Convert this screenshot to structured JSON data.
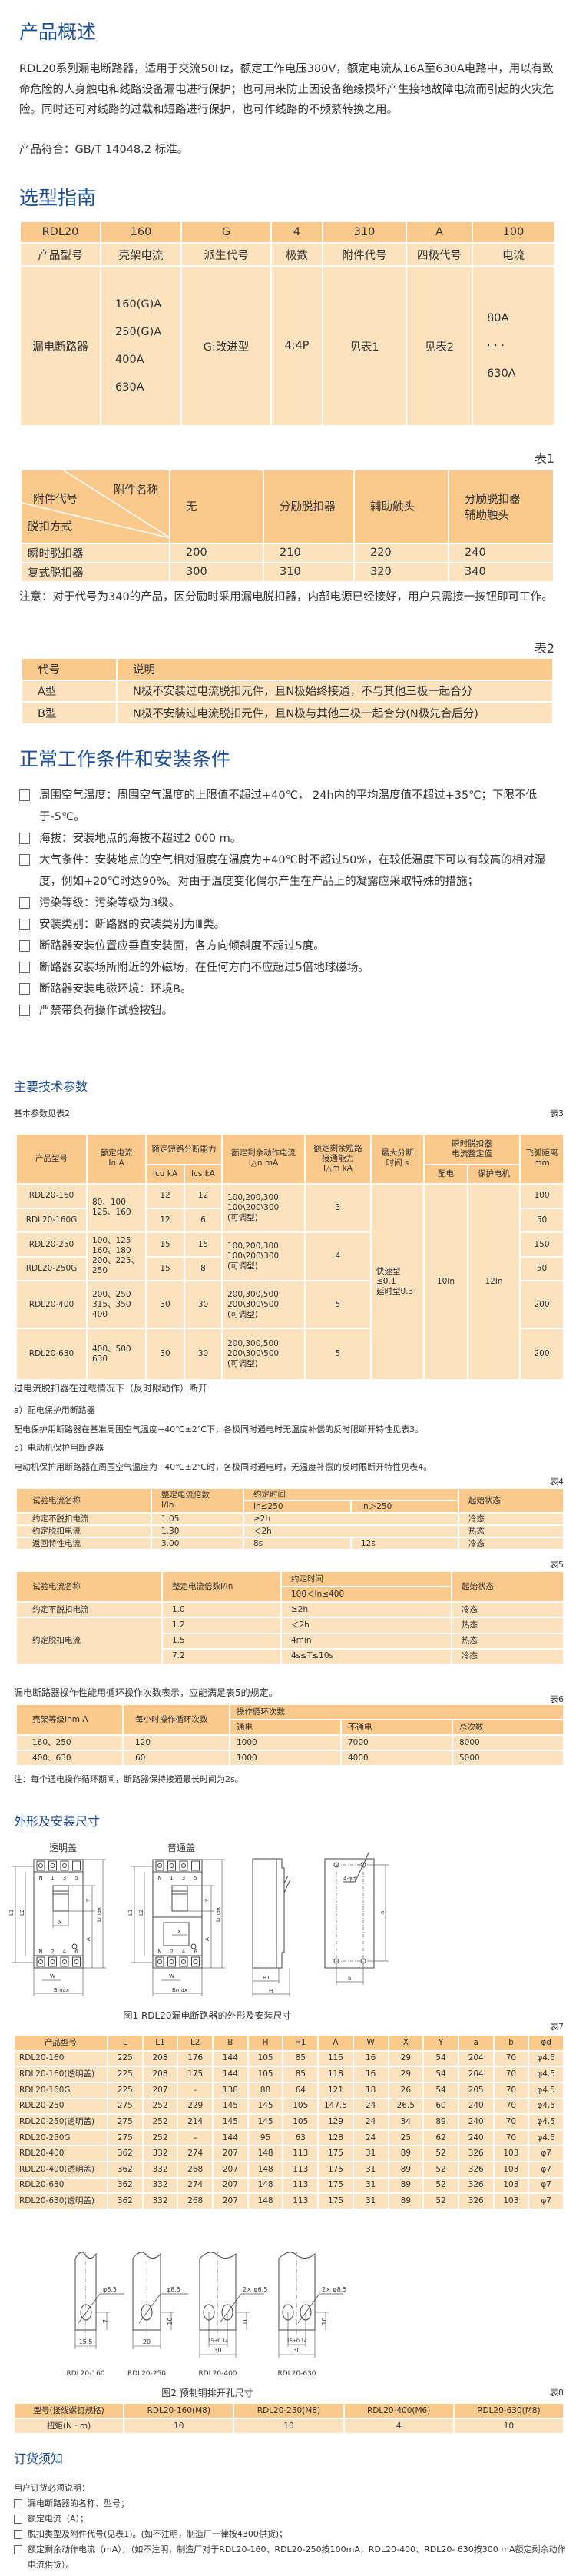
{
  "overview": {
    "title": "产品概述",
    "intro": "RDL20系列漏电断路器，适用于交流50Hz，额定工作电压380V，额定电流从16A至630A电路中，用以有致命危险的人身触电和线路设备漏电进行保护；也可用来防止因设备绝缘损坏产生接地故障电流而引起的火灾危险。同时还可对线路的过载和短路进行保护，也可作线路的不频繁转换之用。",
    "standard": "产品符合：GB/T 14048.2 标准。"
  },
  "selection": {
    "title": "选型指南",
    "codes": [
      "RDL20",
      "160",
      "G",
      "4",
      "310",
      "A",
      "100"
    ],
    "names": [
      "产品型号",
      "壳架电流",
      "派生代号",
      "极数",
      "附件代号",
      "四极代号",
      "电流"
    ],
    "values": [
      "漏电断路器",
      "160(G)A\n250(G)A\n400A\n630A",
      "G:改进型",
      "4:4P",
      "见表1",
      "见表2",
      "80A\n· · ·\n630A"
    ]
  },
  "table1": {
    "label": "表1",
    "corner": {
      "top": "附件名称",
      "middle": "附件代号",
      "bottom": "脱扣方式"
    },
    "header": [
      "无",
      "分励脱扣器",
      "辅助触头",
      "分励脱扣器\n辅助触头"
    ],
    "rows": [
      [
        "瞬时脱扣器",
        "200",
        "210",
        "220",
        "240"
      ],
      [
        "复式脱扣器",
        "300",
        "310",
        "320",
        "340"
      ]
    ],
    "note": "注意：对于代号为340的产品，因分励时采用漏电脱扣器，内部电源已经接好，用户只需接一按钮即可工作。"
  },
  "table2": {
    "label": "表2",
    "header": [
      "代号",
      "说明"
    ],
    "rows": [
      [
        "A型",
        "N极不安装过电流脱扣元件，且N极始终接通，不与其他三极一起合分"
      ],
      [
        "B型",
        "N极不安装过电流脱扣元件，且N极与其他三极一起合分(N极先合后分)"
      ]
    ]
  },
  "conditions": {
    "title": "正常工作条件和安装条件",
    "items": [
      "周围空气温度：周围空气温度的上限值不超过+40℃， 24h内的平均温度值不超过+35℃；下限不低于-5℃。",
      "海拔：安装地点的海拔不超过2 000 m。",
      "大气条件：安装地点的空气相对湿度在温度为+40℃时不超过50%，在较低温度下可以有较高的相对湿度，例如+20℃时达90%。对由于温度变化偶尔产生在产品上的凝露应采取特殊的措施；",
      "污染等级：污染等级为3级。",
      "安装类别：断路器的安装类别为Ⅲ类。",
      "断路器安装位置应垂直安装面，各方向倾斜度不超过5度。",
      "断路器安装场所附近的外磁场，在任何方向不应超过5倍地球磁场。",
      "断路器安装电磁环境：环境B。",
      "严禁带负荷操作试验按钮。"
    ]
  },
  "tech": {
    "title": "主要技术参数",
    "caption": "基本参数见表2",
    "label": "表3",
    "header": [
      "产品型号",
      "额定电流\nIn  A",
      "额定短路分断能力",
      "额定剩余动作电流\nI△n  mA",
      "额定剩余短路\n接通能力\nI△m kA",
      "最大分断\n时间  s",
      "瞬时脱扣器\n电流整定值",
      "飞弧距离\nmm"
    ],
    "subheader": [
      "Icu kA",
      "Ics kA",
      "配电",
      "保护电机"
    ],
    "rows": [
      {
        "model": "RDL20-160",
        "current": "80、100\n125、160",
        "icu": "12",
        "ics": "12",
        "residual": "100,200,300\n100\\200\\300\n(可调型)",
        "make": "3",
        "arc": "100"
      },
      {
        "model": "RDL20-160G",
        "icu": "12",
        "ics": "6",
        "arc": "50"
      },
      {
        "model": "RDL20-250",
        "current": "100、125\n160、180\n200、225、\n250",
        "icu": "15",
        "ics": "15",
        "residual": "100,200,300\n100\\200\\300\n(可调型)",
        "make": "4",
        "arc": "150"
      },
      {
        "model": "RDL20-250G",
        "icu": "15",
        "ics": "8",
        "arc": "50"
      },
      {
        "model": "RDL20-400",
        "current": "200、250\n315、350\n400",
        "icu": "30",
        "ics": "30",
        "residual": "200,300,500\n200\\300\\500\n(可调型)",
        "make": "5",
        "arc": "200"
      },
      {
        "model": "RDL20-630",
        "current": "400、500\n630",
        "icu": "30",
        "ics": "30",
        "residual": "200,300,500\n200\\300\\500\n(可调型)",
        "make": "5",
        "arc": "200"
      }
    ],
    "break_time": "快速型≤0.1\n延时型0.3",
    "inst_dist": "10In",
    "inst_motor": "12In"
  },
  "overcurrent": {
    "title": "过电流脱扣器在过载情况下（反时限动作）断开",
    "a_title": "a）配电保护用断路器",
    "a_text": "配电保护用断路器在基准周围空气温度+40℃±2℃下，各极同时通电时无温度补偿的反时限断开特性见表3。",
    "b_title": "b）电动机保护用断路器",
    "b_text": "电动机保护用断路器在周围空气温度为+40℃±2℃时，各极同时通电时，无温度补偿的反时限断开特性见表4。"
  },
  "table4": {
    "label": "表4",
    "header": [
      "试验电流名称",
      "整定电流倍数\nI/In",
      "约定时间",
      "起始状态"
    ],
    "subheader": [
      "In≤250",
      "In＞250"
    ],
    "rows": [
      [
        "约定不脱扣电流",
        "1.05",
        "≥2h",
        "冷态"
      ],
      [
        "约定脱扣电流",
        "1.30",
        "＜2h",
        "热态"
      ],
      [
        "返回特性电流",
        "3.00",
        "8s",
        "12s",
        "冷态"
      ]
    ]
  },
  "table5": {
    "label": "表5",
    "header": [
      "试验电流名称",
      "整定电流倍数I/In",
      "约定时间",
      "起始状态"
    ],
    "subheader": "100＜In≤400",
    "rows": [
      [
        "约定不脱扣电流",
        "1.0",
        "≥2h",
        "冷态"
      ],
      [
        "约定脱扣电流",
        "1.2",
        "＜2h",
        "热态"
      ],
      [
        "1.5",
        "4min",
        "热态"
      ],
      [
        "7.2",
        "4s≤T≤10s",
        "冷态"
      ]
    ]
  },
  "table6": {
    "intro": "漏电断路器操作性能用循环操作次数表示，应能满足表5的规定。",
    "label": "表6",
    "header": [
      "壳架等级Inm  A",
      "每小时操作循环次数",
      "操作循环次数"
    ],
    "subheader": [
      "通电",
      "不通电",
      "总次数"
    ],
    "rows": [
      [
        "160、250",
        "120",
        "1000",
        "7000",
        "8000"
      ],
      [
        "400、630",
        "60",
        "1000",
        "4000",
        "5000"
      ]
    ],
    "note": "注：每个通电操作循环期间，断路器保持接通最长时间为2s。"
  },
  "dimensions": {
    "title": "外形及安装尺寸",
    "fig1": {
      "view_transparent": "透明盖",
      "view_normal": "普通盖",
      "top_terminals": [
        "N",
        "1",
        "3",
        "5"
      ],
      "bottom_terminals": [
        "N",
        "2",
        "4",
        "6"
      ],
      "dims": {
        "L1": "L1",
        "L2": "L2",
        "Lmax": "Lmax",
        "X": "X",
        "Y": "Y",
        "A": "A",
        "W": "W",
        "Bmax": "Bmax",
        "H1": "H1",
        "H": "H",
        "a": "a",
        "b": "b",
        "holes": "4-φd"
      },
      "caption": "图1 RDL20漏电断路器的外形及安装尺寸"
    },
    "table7": {
      "label": "表7",
      "header": [
        "产品型号",
        "L",
        "L1",
        "L2",
        "B",
        "H",
        "H1",
        "A",
        "W",
        "X",
        "Y",
        "a",
        "b",
        "φd"
      ],
      "rows": [
        [
          "RDL20-160",
          "225",
          "208",
          "176",
          "144",
          "105",
          "85",
          "115",
          "16",
          "29",
          "54",
          "204",
          "70",
          "φ4.5"
        ],
        [
          "RDL20-160(透明盖)",
          "225",
          "208",
          "175",
          "144",
          "105",
          "85",
          "118",
          "16",
          "29",
          "54",
          "204",
          "70",
          "φ4.5"
        ],
        [
          "RDL20-160G",
          "225",
          "207",
          "-",
          "138",
          "88",
          "64",
          "121",
          "18",
          "26",
          "54",
          "205",
          "70",
          "φ4.5"
        ],
        [
          "RDL20-250",
          "275",
          "252",
          "229",
          "145",
          "145",
          "105",
          "147.5",
          "24",
          "26.5",
          "60",
          "240",
          "70",
          "φ4.5"
        ],
        [
          "RDL20-250(透明盖)",
          "275",
          "252",
          "214",
          "145",
          "145",
          "105",
          "129",
          "24",
          "34",
          "89",
          "240",
          "70",
          "φ4.5"
        ],
        [
          "RDL20-250G",
          "275",
          "252",
          "–",
          "144",
          "95",
          "63",
          "128",
          "24",
          "25",
          "62",
          "240",
          "70",
          "φ4.5"
        ],
        [
          "RDL20-400",
          "362",
          "332",
          "274",
          "207",
          "148",
          "113",
          "175",
          "31",
          "89",
          "52",
          "326",
          "103",
          "φ7"
        ],
        [
          "RDL20-400(透明盖)",
          "362",
          "332",
          "268",
          "207",
          "148",
          "113",
          "175",
          "31",
          "89",
          "52",
          "326",
          "103",
          "φ7"
        ],
        [
          "RDL20-630",
          "362",
          "332",
          "274",
          "207",
          "148",
          "113",
          "175",
          "31",
          "89",
          "52",
          "326",
          "103",
          "φ7"
        ],
        [
          "RDL20-630(透明盖)",
          "362",
          "332",
          "268",
          "207",
          "148",
          "113",
          "175",
          "31",
          "89",
          "52",
          "326",
          "103",
          "φ7"
        ]
      ]
    },
    "fig2": {
      "bars": [
        {
          "model": "RDL20-160",
          "hole": "φ8.5",
          "height": "7",
          "width": "15.5"
        },
        {
          "model": "RDL20-250",
          "hole": "φ8.5",
          "height": "10",
          "width": "20"
        },
        {
          "model": "RDL20-400",
          "hole": "2× φ6.5",
          "height": "10",
          "pitch": "15±0.14",
          "width": "30"
        },
        {
          "model": "RDL20-630",
          "hole": "2× φ8.5",
          "height": "10",
          "pitch": "15±0.14",
          "width": "30"
        }
      ],
      "caption": "图2  预制铜排开孔尺寸"
    },
    "table8": {
      "label": "表8",
      "header": [
        "型号(接线螺钉规格)",
        "RDL20-160(M8)",
        "RDL20-250(M8)",
        "RDL20-400(M6)",
        "RDL20-630(M8)"
      ],
      "rows": [
        [
          "扭矩(N · m)",
          "10",
          "10",
          "4",
          "10"
        ]
      ]
    }
  },
  "ordering": {
    "title": "订货须知",
    "intro": "用户订货必须说明：",
    "items": [
      "漏电断路器的名称、型号；",
      "额定电流（A）；",
      "脱扣类型及附件代号(见表1)。(如不注明，制造厂一律按4300供货)；",
      "额定剩余动作电流（mA），（如不注明，制造厂对于RDL20-160、RDL20-250按100mA，RDL20-400、RDL20- 630按300 mA额定剩余动作电流供货）。"
    ]
  },
  "colors": {
    "heading": "#1f4f93",
    "table_header": "#fbc98b",
    "table_body": "#fde2bf",
    "text": "#333333"
  }
}
